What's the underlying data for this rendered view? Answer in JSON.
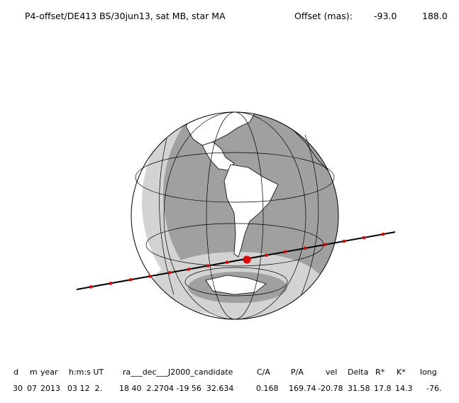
{
  "header": {
    "title": "P4-offset/DE413 BS/30jun13, sat MB, star MA",
    "offset_label": "Offset (mas):",
    "offset_values": [
      "-93.0",
      "188.0"
    ]
  },
  "table": {
    "columns": [
      "d",
      "m",
      "year",
      "h:m:s UT",
      "ra___dec___J2000_candidate",
      "C/A",
      "P/A",
      "vel",
      "Delta",
      "R*",
      "K*",
      "long"
    ],
    "rows": [
      [
        "30",
        "07",
        "2013",
        "03 12  2.",
        "18 40  2.2704 -19 56  32.634",
        "0.168",
        "169.74",
        "-20.78",
        "31.58",
        "17.8",
        "14.3",
        "-76."
      ]
    ]
  }
}
